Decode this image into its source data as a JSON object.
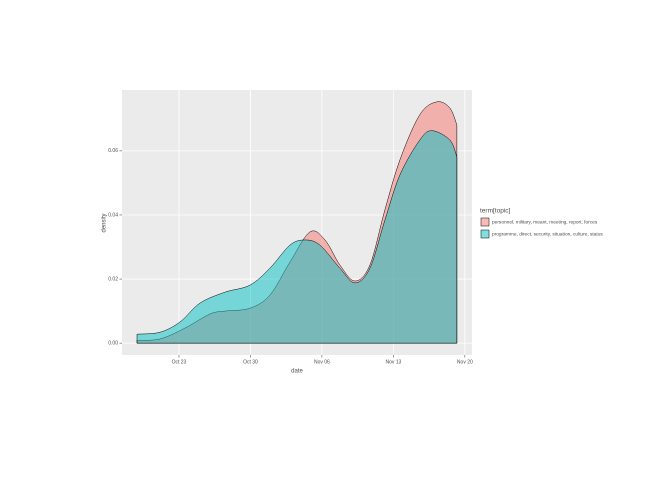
{
  "chart_data": {
    "type": "area",
    "x_label": "date",
    "y_label": "density",
    "legend_title": "term[topic]",
    "xlim": [
      -5.58,
      28.7
    ],
    "ylim": [
      -0.0037,
      0.079
    ],
    "xticks": [
      {
        "value": 0,
        "label": "Oct 23"
      },
      {
        "value": 7,
        "label": "Oct 30"
      },
      {
        "value": 14,
        "label": "Nov 06"
      },
      {
        "value": 21,
        "label": "Nov 13"
      },
      {
        "value": 28,
        "label": "Nov 20"
      }
    ],
    "yticks": [
      {
        "value": 0,
        "label": "0.00"
      },
      {
        "value": 0.02,
        "label": "0.02"
      },
      {
        "value": 0.04,
        "label": "0.04"
      },
      {
        "value": 0.06,
        "label": "0.06"
      }
    ],
    "grid": true,
    "series": [
      {
        "name": "personnel, military, meant, meeting, report, forces",
        "color": "#F8766D",
        "x": [
          -4.11,
          -1.86,
          0.59,
          3.04,
          4.5,
          6.95,
          8.91,
          10.87,
          12.83,
          14.3,
          15.76,
          17.23,
          18.7,
          20.17,
          21.64,
          23.59,
          25.26,
          26.53,
          27.22
        ],
        "values": [
          0.0009,
          0.0013,
          0.0047,
          0.0091,
          0.01,
          0.0109,
          0.015,
          0.0253,
          0.0347,
          0.0322,
          0.0244,
          0.0194,
          0.0244,
          0.0416,
          0.0572,
          0.0713,
          0.0753,
          0.0734,
          0.0681
        ]
      },
      {
        "name": "programme, direct, security, situation, culture, status",
        "color": "#00BFC4",
        "x": [
          -4.11,
          -1.86,
          0.1,
          2.06,
          4.5,
          6.95,
          8.91,
          10.87,
          12.34,
          13.8,
          15.76,
          17.23,
          18.7,
          20.17,
          21.64,
          23.59,
          24.77,
          26.53,
          27.22
        ],
        "values": [
          0.0028,
          0.0034,
          0.0066,
          0.0125,
          0.0159,
          0.0181,
          0.0234,
          0.0306,
          0.0322,
          0.0306,
          0.0234,
          0.0188,
          0.0234,
          0.0384,
          0.0525,
          0.0634,
          0.0663,
          0.0634,
          0.0581
        ]
      }
    ]
  }
}
